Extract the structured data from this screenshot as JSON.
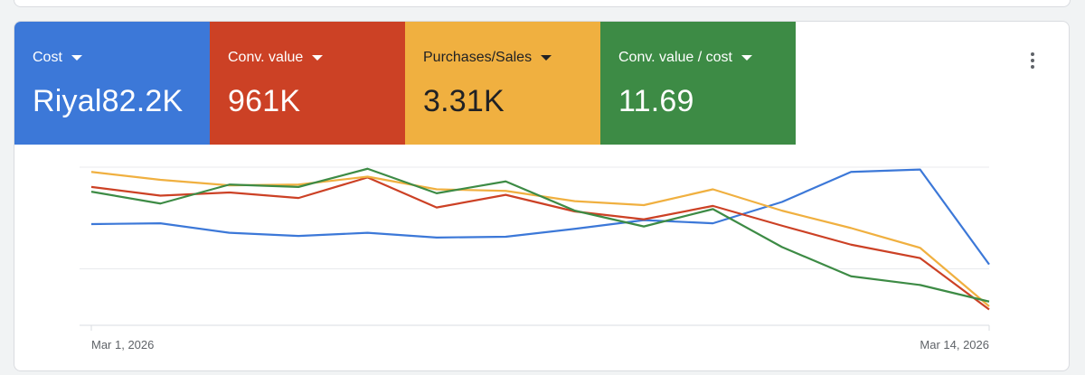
{
  "metrics": [
    {
      "label": "Cost",
      "value": "Riyal82.2K",
      "color": "#3c78d8"
    },
    {
      "label": "Conv. value",
      "value": "961K",
      "color": "#cc4125"
    },
    {
      "label": "Purchases/Sales",
      "value": "3.31K",
      "color": "#f0b040"
    },
    {
      "label": "Conv. value / cost",
      "value": "11.69",
      "color": "#3d8b45"
    }
  ],
  "more_icon": "more-vert-icon",
  "chart_data": {
    "type": "line",
    "x": [
      "Mar 1, 2026",
      "Mar 2, 2026",
      "Mar 3, 2026",
      "Mar 4, 2026",
      "Mar 5, 2026",
      "Mar 6, 2026",
      "Mar 7, 2026",
      "Mar 8, 2026",
      "Mar 9, 2026",
      "Mar 10, 2026",
      "Mar 11, 2026",
      "Mar 12, 2026",
      "Mar 13, 2026",
      "Mar 14, 2026"
    ],
    "x_tick_labels": [
      "Mar 1, 2026",
      "Mar 14, 2026"
    ],
    "y_range": [
      0,
      100
    ],
    "grid": true,
    "series": [
      {
        "name": "Cost",
        "color": "#3c78d8",
        "values": [
          64,
          64.5,
          58.5,
          56.5,
          58.5,
          55.5,
          56,
          61,
          66.5,
          64.5,
          78,
          97,
          98.5,
          38.5
        ]
      },
      {
        "name": "Conv. value",
        "color": "#cc4125",
        "values": [
          87.5,
          82,
          84,
          80.5,
          93.5,
          74.5,
          82.5,
          72,
          67,
          75.5,
          63,
          51,
          42.5,
          10
        ]
      },
      {
        "name": "Purchases/Sales",
        "color": "#f0b040",
        "values": [
          97,
          92,
          88.5,
          89,
          94,
          86,
          85,
          78.5,
          76,
          86,
          72.5,
          61.5,
          49,
          12
        ]
      },
      {
        "name": "Conv. value / cost",
        "color": "#3d8b45",
        "values": [
          84.5,
          77,
          89,
          87.5,
          99,
          83.5,
          91,
          72.5,
          62.5,
          73.5,
          49.5,
          31,
          25.5,
          15
        ]
      }
    ]
  }
}
